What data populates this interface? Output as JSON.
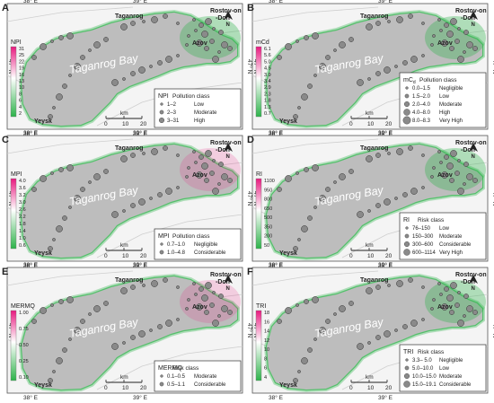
{
  "figure": {
    "axis": {
      "lon_labels": [
        "38° E",
        "39° E"
      ],
      "lat_label": "47° N",
      "north": "N",
      "scale_unit": "km",
      "scale_ticks": [
        "0",
        "10",
        "20"
      ]
    },
    "places": {
      "bay": "Taganrog Bay",
      "taganrog": "Taganrog",
      "rostov_line1": "Rostov-on",
      "rostov_line2": "-Don",
      "azov": "Azov",
      "yeysk": "Yeysk"
    },
    "colors": {
      "land": "#f4f4f4",
      "sea": "#bdbdbd",
      "coast_green": "#2db34a",
      "high_pink": "#e8197f",
      "dot_fill": "#8a8a8a"
    },
    "panels": [
      {
        "letter": "A",
        "index_name": "NPI",
        "legend_title": "NPI",
        "legend_class_word": "Pollution class",
        "colorbar_ticks": [
          "31",
          "25",
          "22",
          "19",
          "16",
          "13",
          "10",
          "8",
          "6",
          "4",
          "2"
        ],
        "legend_classes": [
          {
            "range": "1–2",
            "label": "Low"
          },
          {
            "range": "2–3",
            "label": "Moderate"
          },
          {
            "range": "3–31",
            "label": "High"
          }
        ],
        "hotspot": "green"
      },
      {
        "letter": "B",
        "index_name": "mCd",
        "legend_title": "mC",
        "legend_title_sub": "d",
        "legend_class_word": "Pollution class",
        "colorbar_ticks": [
          "6.1",
          "5.6",
          "5.0",
          "4.5",
          "3.9",
          "3.4",
          "2.9",
          "2.3",
          "1.8",
          "1.3",
          "0.7"
        ],
        "legend_classes": [
          {
            "range": "0.0–1.5",
            "label": "Negligible"
          },
          {
            "range": "1.5–2.0",
            "label": "Low"
          },
          {
            "range": "2.0–4.0",
            "label": "Moderate"
          },
          {
            "range": "4.0–8.0",
            "label": "High"
          },
          {
            "range": "8.0–8.3",
            "label": "Very High"
          }
        ],
        "hotspot": "green"
      },
      {
        "letter": "C",
        "index_name": "MPI",
        "legend_title": "MPI",
        "legend_class_word": "Pollution class",
        "colorbar_ticks": [
          "4.0",
          "3.6",
          "3.2",
          "3.0",
          "2.6",
          "2.2",
          "1.8",
          "1.4",
          "1.0",
          "0.6"
        ],
        "legend_classes": [
          {
            "range": "0.7–1.0",
            "label": "Negligible"
          },
          {
            "range": "1.0–4.8",
            "label": "Considerable"
          }
        ],
        "hotspot": "pink"
      },
      {
        "letter": "D",
        "index_name": "RI",
        "legend_title": "RI",
        "legend_class_word": "Risk class",
        "colorbar_ticks": [
          "1100",
          "950",
          "800",
          "650",
          "500",
          "350",
          "200",
          "50"
        ],
        "legend_classes": [
          {
            "range": "76–150",
            "label": "Low"
          },
          {
            "range": "150–300",
            "label": "Moderate"
          },
          {
            "range": "300–600",
            "label": "Considerable"
          },
          {
            "range": "600–1114",
            "label": "Very High"
          }
        ],
        "hotspot": "green"
      },
      {
        "letter": "E",
        "index_name": "MERMQ",
        "legend_title": "MERMQ",
        "legend_class_word": "Risk class",
        "colorbar_ticks": [
          "1.00",
          "0.75",
          "0.50",
          "0.25",
          "0.10"
        ],
        "legend_classes": [
          {
            "range": "0.1–0.5",
            "label": "Moderate"
          },
          {
            "range": "0.5–1.1",
            "label": "Considerable"
          }
        ],
        "hotspot": "pink"
      },
      {
        "letter": "F",
        "index_name": "TRI",
        "legend_title": "TRI",
        "legend_class_word": "Risk class",
        "colorbar_ticks": [
          "18",
          "16",
          "14",
          "12",
          "10",
          "8",
          "6",
          "4"
        ],
        "legend_classes": [
          {
            "range": "3.3– 5.0",
            "label": "Negligible"
          },
          {
            "range": "5.0–10.0",
            "label": "Low"
          },
          {
            "range": "10.0–15.0",
            "label": "Moderate"
          },
          {
            "range": "15.0–19.1",
            "label": "Considerable"
          }
        ],
        "hotspot": "green"
      }
    ]
  }
}
